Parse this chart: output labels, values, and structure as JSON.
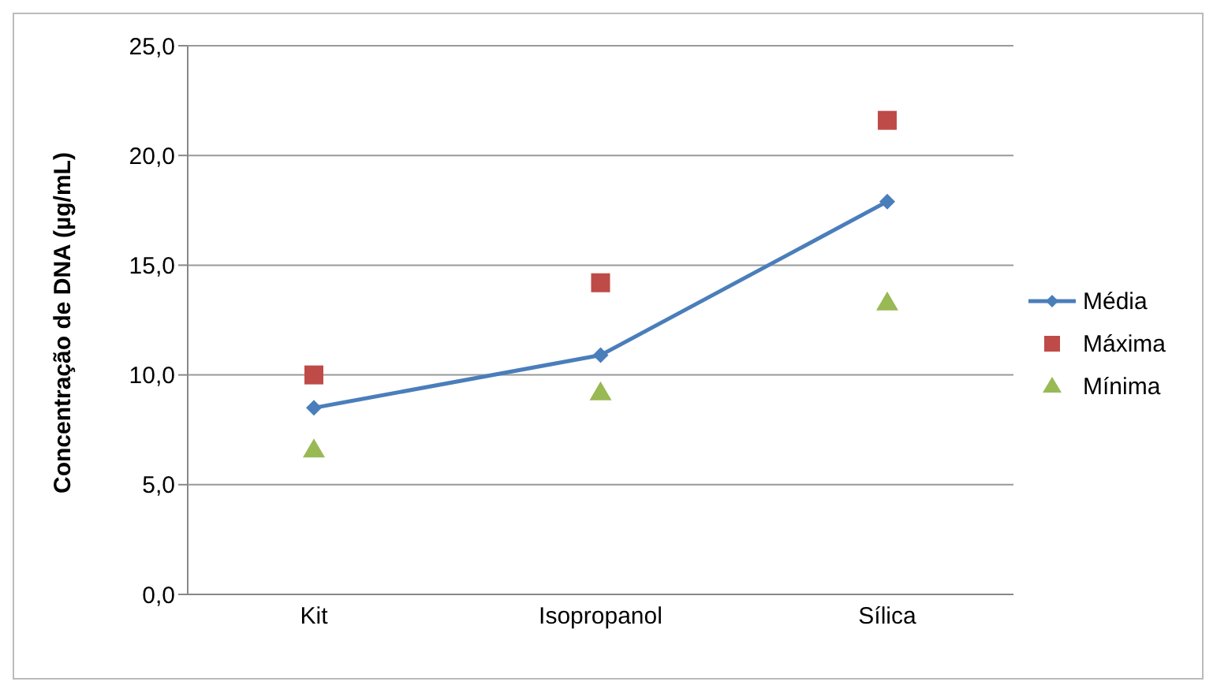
{
  "chart_data": {
    "type": "line",
    "ylabel": "Concentração de DNA (µg/mL)",
    "categories": [
      "Kit",
      "Isopropanol",
      "Sílica"
    ],
    "series": [
      {
        "name": "Média",
        "marker": "diamond",
        "color": "#4a7ebb",
        "values": [
          8.5,
          10.9,
          17.9
        ]
      },
      {
        "name": "Máxima",
        "type": "scatter",
        "marker": "square",
        "color": "#be4b48",
        "values": [
          10.0,
          14.2,
          21.6
        ]
      },
      {
        "name": "Mínima",
        "type": "scatter",
        "marker": "triangle",
        "color": "#98b954",
        "values": [
          6.6,
          9.2,
          13.3
        ]
      }
    ],
    "ylim": [
      0,
      25
    ],
    "yticks": [
      {
        "value": 0,
        "label": "0,0"
      },
      {
        "value": 5,
        "label": "5,0"
      },
      {
        "value": 10,
        "label": "10,0"
      },
      {
        "value": 15,
        "label": "15,0"
      },
      {
        "value": 20,
        "label": "20,0"
      },
      {
        "value": 25,
        "label": "25,0"
      }
    ],
    "grid": "y",
    "legend": "right"
  }
}
